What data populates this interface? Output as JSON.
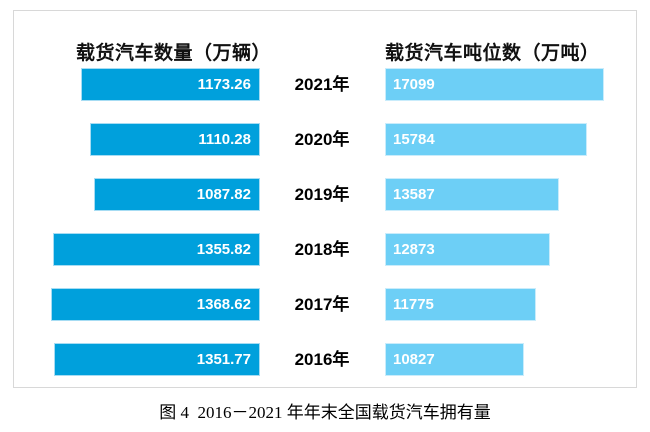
{
  "figure": {
    "caption": "图 4  2016－2021 年年末全国载货汽车拥有量"
  },
  "chart_data": {
    "type": "bar",
    "variant": "tornado (diverging horizontal bars, years in center column)",
    "title": "图 4  2016－2021 年年末全国载货汽车拥有量",
    "categories": [
      "2021年",
      "2020年",
      "2019年",
      "2018年",
      "2017年",
      "2016年"
    ],
    "series": [
      {
        "name": "载货汽车数量（万辆）",
        "side": "left",
        "values": [
          1173.26,
          1110.28,
          1087.82,
          1355.82,
          1368.62,
          1351.77
        ],
        "labels": [
          "1173.26",
          "1110.28",
          "1087.82",
          "1355.82",
          "1368.62",
          "1351.77"
        ],
        "color": "#00A0DC",
        "border_color": "#A6DCF3"
      },
      {
        "name": "载货汽车吨位数（万吨）",
        "side": "right",
        "values": [
          17099,
          15784,
          13587,
          12873,
          11775,
          10827
        ],
        "labels": [
          "17099",
          "15784",
          "13587",
          "12873",
          "11775",
          "10827"
        ],
        "color": "#6DCFF6",
        "border_color": "#C9ECFB"
      }
    ],
    "value_labels": "inside bar ends, white bold; left series right-aligned, right series left-aligned",
    "legend_position": "series names shown as bold column headers above the bars",
    "axis": "no visible axes or gridlines; bar length proportional to value (max value = full column width)",
    "panel_border_color": "#D8D8D8"
  }
}
